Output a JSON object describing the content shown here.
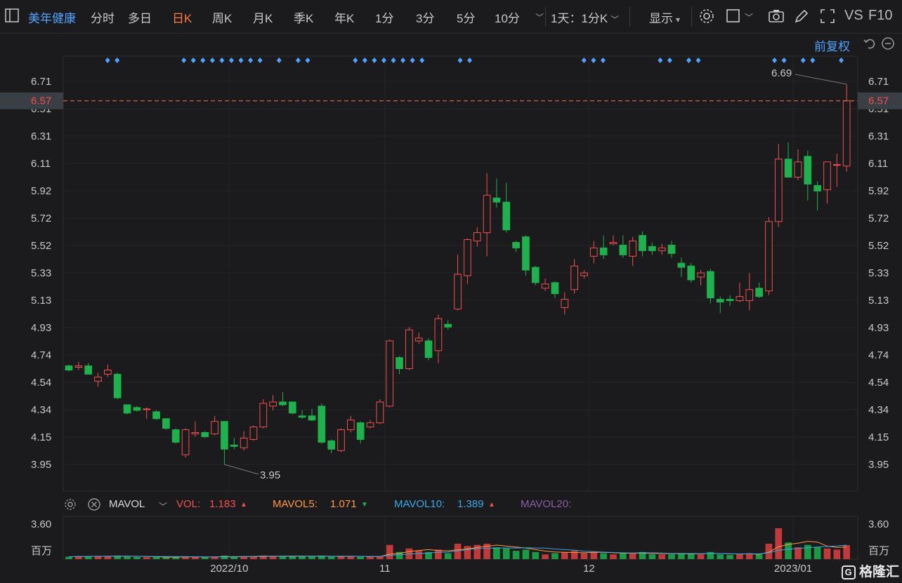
{
  "toolbar": {
    "stock_name": "美年健康",
    "tabs": [
      {
        "label": "分时",
        "active": false
      },
      {
        "label": "多日",
        "active": false
      },
      {
        "label": "日K",
        "active": true
      },
      {
        "label": "周K",
        "active": false
      },
      {
        "label": "月K",
        "active": false
      },
      {
        "label": "季K",
        "active": false
      },
      {
        "label": "年K",
        "active": false
      },
      {
        "label": "1分",
        "active": false
      },
      {
        "label": "3分",
        "active": false
      },
      {
        "label": "5分",
        "active": false
      },
      {
        "label": "10分",
        "active": false
      }
    ],
    "interval_select": "1天：1分K",
    "display_label": "显示",
    "vs_label": "VS",
    "f10_label": "F10"
  },
  "adjust_label": "前复权",
  "price_axis": [
    "6.71",
    "6.51",
    "6.31",
    "6.11",
    "5.92",
    "5.72",
    "5.52",
    "5.33",
    "5.13",
    "4.93",
    "4.74",
    "4.54",
    "4.34",
    "4.15",
    "3.95"
  ],
  "current_price": "6.57",
  "high_marker": "6.69",
  "low_marker": "3.95",
  "x_axis": [
    "2022/10",
    "11",
    "12",
    "2023/01"
  ],
  "volume": {
    "indicator": "MAVOL",
    "vol_label": "VOL:",
    "vol_value": "1.183",
    "vol_dir": "▲",
    "mavol5_label": "MAVOL5:",
    "mavol5_value": "1.071",
    "mavol5_dir": "▼",
    "mavol10_label": "MAVOL10:",
    "mavol10_value": "1.389",
    "mavol10_dir": "▲",
    "mavol20_label": "MAVOL20:",
    "axis_top": "3.60",
    "axis_unit": "百万"
  },
  "logo": "格隆汇",
  "colors": {
    "up": "#f0504e",
    "down": "#1fb14d",
    "accent": "#ff7a3c",
    "link": "#4fa3ff"
  },
  "chart_data": {
    "type": "candlestick",
    "ylim": [
      3.95,
      6.71
    ],
    "candles": [
      [
        4.66,
        4.63,
        4.67,
        4.62
      ],
      [
        4.65,
        4.66,
        4.69,
        4.63
      ],
      [
        4.66,
        4.6,
        4.68,
        4.6
      ],
      [
        4.55,
        4.58,
        4.61,
        4.51
      ],
      [
        4.6,
        4.63,
        4.67,
        4.58
      ],
      [
        4.6,
        4.43,
        4.61,
        4.42
      ],
      [
        4.38,
        4.32,
        4.38,
        4.31
      ],
      [
        4.36,
        4.34,
        4.37,
        4.33
      ],
      [
        4.35,
        4.35,
        4.36,
        4.28
      ],
      [
        4.33,
        4.28,
        4.34,
        4.27
      ],
      [
        4.28,
        4.21,
        4.28,
        4.2
      ],
      [
        4.2,
        4.11,
        4.21,
        4.1
      ],
      [
        4.02,
        4.2,
        4.21,
        4.0
      ],
      [
        4.17,
        4.18,
        4.26,
        4.15
      ],
      [
        4.18,
        4.15,
        4.19,
        4.14
      ],
      [
        4.17,
        4.26,
        4.3,
        4.16
      ],
      [
        4.26,
        4.06,
        4.26,
        3.95
      ],
      [
        4.09,
        4.08,
        4.14,
        4.06
      ],
      [
        4.07,
        4.14,
        4.19,
        4.05
      ],
      [
        4.13,
        4.22,
        4.23,
        4.12
      ],
      [
        4.22,
        4.39,
        4.42,
        4.21
      ],
      [
        4.37,
        4.4,
        4.45,
        4.34
      ],
      [
        4.4,
        4.38,
        4.47,
        4.37
      ],
      [
        4.4,
        4.32,
        4.4,
        4.31
      ],
      [
        4.3,
        4.29,
        4.34,
        4.28
      ],
      [
        4.3,
        4.27,
        4.35,
        4.26
      ],
      [
        4.37,
        4.11,
        4.39,
        4.1
      ],
      [
        4.12,
        4.06,
        4.13,
        4.03
      ],
      [
        4.05,
        4.2,
        4.21,
        4.04
      ],
      [
        4.2,
        4.27,
        4.3,
        4.18
      ],
      [
        4.25,
        4.13,
        4.26,
        4.1
      ],
      [
        4.22,
        4.25,
        4.27,
        4.21
      ],
      [
        4.25,
        4.4,
        4.42,
        4.24
      ],
      [
        4.37,
        4.84,
        4.85,
        4.36
      ],
      [
        4.72,
        4.64,
        4.73,
        4.6
      ],
      [
        4.64,
        4.92,
        4.94,
        4.63
      ],
      [
        4.84,
        4.86,
        4.9,
        4.82
      ],
      [
        4.84,
        4.72,
        4.86,
        4.7
      ],
      [
        4.77,
        5.0,
        5.03,
        4.68
      ],
      [
        4.96,
        4.94,
        4.99,
        4.92
      ],
      [
        5.07,
        5.32,
        5.46,
        5.06
      ],
      [
        5.31,
        5.57,
        5.58,
        5.25
      ],
      [
        5.56,
        5.62,
        5.66,
        5.52
      ],
      [
        5.62,
        5.89,
        6.05,
        5.45
      ],
      [
        5.87,
        5.84,
        6.01,
        5.8
      ],
      [
        5.84,
        5.64,
        5.98,
        5.62
      ],
      [
        5.55,
        5.51,
        5.56,
        5.48
      ],
      [
        5.59,
        5.35,
        5.6,
        5.31
      ],
      [
        5.37,
        5.26,
        5.38,
        5.24
      ],
      [
        5.22,
        5.25,
        5.29,
        5.2
      ],
      [
        5.26,
        5.18,
        5.27,
        5.15
      ],
      [
        5.08,
        5.14,
        5.19,
        5.03
      ],
      [
        5.21,
        5.38,
        5.43,
        5.18
      ],
      [
        5.31,
        5.33,
        5.35,
        5.29
      ],
      [
        5.45,
        5.51,
        5.56,
        5.4
      ],
      [
        5.51,
        5.46,
        5.6,
        5.43
      ],
      [
        5.54,
        5.55,
        5.6,
        5.53
      ],
      [
        5.53,
        5.46,
        5.6,
        5.44
      ],
      [
        5.45,
        5.56,
        5.59,
        5.38
      ],
      [
        5.6,
        5.49,
        5.63,
        5.45
      ],
      [
        5.52,
        5.49,
        5.55,
        5.46
      ],
      [
        5.49,
        5.51,
        5.54,
        5.46
      ],
      [
        5.53,
        5.47,
        5.56,
        5.44
      ],
      [
        5.4,
        5.37,
        5.44,
        5.3
      ],
      [
        5.38,
        5.28,
        5.4,
        5.26
      ],
      [
        5.3,
        5.33,
        5.35,
        5.24
      ],
      [
        5.34,
        5.15,
        5.36,
        5.11
      ],
      [
        5.14,
        5.12,
        5.16,
        5.04
      ],
      [
        5.14,
        5.13,
        5.17,
        5.09
      ],
      [
        5.13,
        5.16,
        5.26,
        5.12
      ],
      [
        5.13,
        5.21,
        5.33,
        5.06
      ],
      [
        5.22,
        5.16,
        5.26,
        5.15
      ],
      [
        5.2,
        5.7,
        5.73,
        5.17
      ],
      [
        5.7,
        6.15,
        6.26,
        5.66
      ],
      [
        6.15,
        6.02,
        6.27,
        6.02
      ],
      [
        6.02,
        6.13,
        6.22,
        6.0
      ],
      [
        6.17,
        5.97,
        6.21,
        5.85
      ],
      [
        5.96,
        5.92,
        5.99,
        5.78
      ],
      [
        5.93,
        6.13,
        6.13,
        5.83
      ],
      [
        6.11,
        6.11,
        6.19,
        5.95
      ],
      [
        6.1,
        6.57,
        6.69,
        6.06
      ]
    ],
    "volumes": [
      0.2,
      0.25,
      0.22,
      0.28,
      0.25,
      0.3,
      0.2,
      0.18,
      0.16,
      0.18,
      0.15,
      0.2,
      0.22,
      0.18,
      0.16,
      0.2,
      0.3,
      0.22,
      0.2,
      0.22,
      0.3,
      0.28,
      0.25,
      0.24,
      0.22,
      0.22,
      0.3,
      0.2,
      0.22,
      0.25,
      0.2,
      0.2,
      0.25,
      1.2,
      0.6,
      0.9,
      0.7,
      0.6,
      0.8,
      0.5,
      1.3,
      1.1,
      1.2,
      1.3,
      1.0,
      0.9,
      0.7,
      0.8,
      0.6,
      0.4,
      0.5,
      0.6,
      0.7,
      0.5,
      0.6,
      0.5,
      0.4,
      0.5,
      0.5,
      0.6,
      0.4,
      0.4,
      0.4,
      0.5,
      0.5,
      0.4,
      0.6,
      0.4,
      0.35,
      0.4,
      0.5,
      0.4,
      1.3,
      2.6,
      1.4,
      1.0,
      1.2,
      1.0,
      0.9,
      0.8,
      1.18
    ]
  }
}
